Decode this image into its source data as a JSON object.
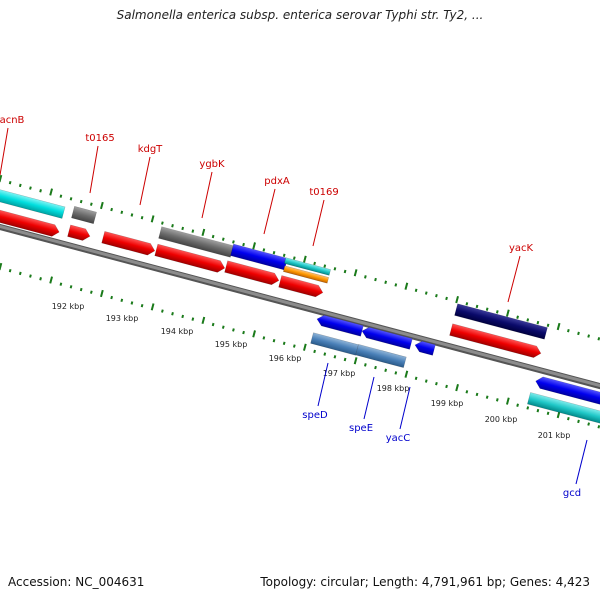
{
  "header": {
    "title": "Salmonella enterica subsp. enterica serovar Typhi str. Ty2, ..."
  },
  "footer": {
    "accession": "Accession: NC_004631",
    "topology": "Topology: circular; Length: 4,791,961 bp; Genes: 4,423"
  },
  "colors": {
    "forward_label": "#cc0000",
    "reverse_label": "#0000cc",
    "tick": "#1a7a1a",
    "backbone": "#8c8c8c"
  },
  "map": {
    "kbp_ticks": [
      "192 kbp",
      "193 kbp",
      "194 kbp",
      "195 kbp",
      "196 kbp",
      "197 kbp",
      "198 kbp",
      "199 kbp",
      "200 kbp",
      "201 kbp"
    ],
    "forward_genes": [
      {
        "label": "acnB",
        "color": "cyan"
      },
      {
        "label": "t0165",
        "color": "gray"
      },
      {
        "label": "kdgT",
        "color": "red"
      },
      {
        "label": "ygbK",
        "color": "gray"
      },
      {
        "label": "pdxA",
        "color": "blue"
      },
      {
        "label": "t0169",
        "color": "cyan/orange"
      },
      {
        "label": "yacK",
        "color": "navy"
      }
    ],
    "reverse_genes": [
      {
        "label": "speD",
        "color": "steelblue"
      },
      {
        "label": "speE",
        "color": "steelblue"
      },
      {
        "label": "yacC",
        "color": "blue"
      },
      {
        "label": "gcd",
        "color": "blue/cyan"
      }
    ]
  }
}
